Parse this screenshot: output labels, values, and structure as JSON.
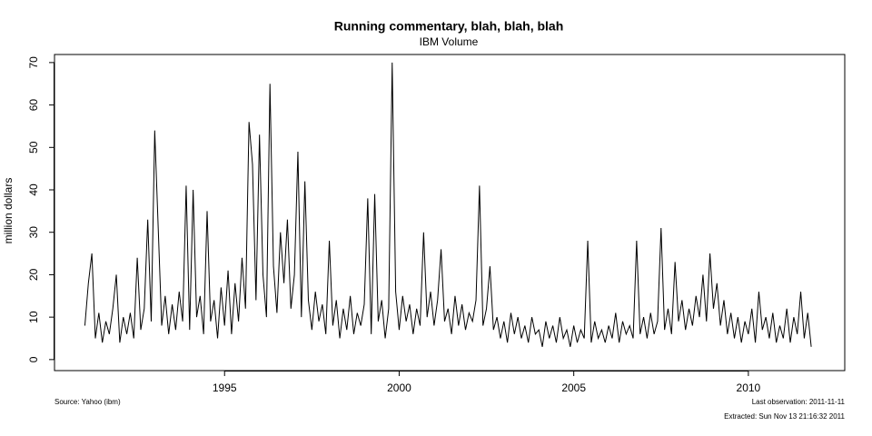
{
  "chart_data": {
    "type": "line",
    "title": "Running commentary, blah, blah, blah",
    "subtitle": "IBM Volume",
    "y_label": "million dollars",
    "source": "Source: Yahoo (ibm)",
    "last_observation": "Last observation: 2011-11-11",
    "extracted": "Extracted: Sun Nov 13 21:16:32 2011",
    "xlim": [
      1990.13,
      2012.76
    ],
    "ylim": [
      -2.6,
      71.9
    ],
    "xticks": [
      1995,
      2000,
      2005,
      2010
    ],
    "yticks": [
      0,
      10,
      20,
      30,
      40,
      50,
      60,
      70
    ],
    "x": [
      1991.0,
      1991.1,
      1991.2,
      1991.3,
      1991.4,
      1991.5,
      1991.6,
      1991.7,
      1991.8,
      1991.9,
      1992.0,
      1992.1,
      1992.2,
      1992.3,
      1992.4,
      1992.5,
      1992.6,
      1992.7,
      1992.8,
      1992.9,
      1993.0,
      1993.1,
      1993.2,
      1993.3,
      1993.4,
      1993.5,
      1993.6,
      1993.7,
      1993.8,
      1993.9,
      1994.0,
      1994.1,
      1994.2,
      1994.3,
      1994.4,
      1994.5,
      1994.6,
      1994.7,
      1994.8,
      1994.9,
      1995.0,
      1995.1,
      1995.2,
      1995.3,
      1995.4,
      1995.5,
      1995.6,
      1995.7,
      1995.8,
      1995.9,
      1996.0,
      1996.1,
      1996.2,
      1996.3,
      1996.4,
      1996.5,
      1996.6,
      1996.7,
      1996.8,
      1996.9,
      1997.0,
      1997.1,
      1997.2,
      1997.3,
      1997.4,
      1997.5,
      1997.6,
      1997.7,
      1997.8,
      1997.9,
      1998.0,
      1998.1,
      1998.2,
      1998.3,
      1998.4,
      1998.5,
      1998.6,
      1998.7,
      1998.8,
      1998.9,
      1999.0,
      1999.1,
      1999.2,
      1999.3,
      1999.4,
      1999.5,
      1999.6,
      1999.7,
      1999.8,
      1999.9,
      2000.0,
      2000.1,
      2000.2,
      2000.3,
      2000.4,
      2000.5,
      2000.6,
      2000.7,
      2000.8,
      2000.9,
      2001.0,
      2001.1,
      2001.2,
      2001.3,
      2001.4,
      2001.5,
      2001.6,
      2001.7,
      2001.8,
      2001.9,
      2002.0,
      2002.1,
      2002.2,
      2002.3,
      2002.4,
      2002.5,
      2002.6,
      2002.7,
      2002.8,
      2002.9,
      2003.0,
      2003.1,
      2003.2,
      2003.3,
      2003.4,
      2003.5,
      2003.6,
      2003.7,
      2003.8,
      2003.9,
      2004.0,
      2004.1,
      2004.2,
      2004.3,
      2004.4,
      2004.5,
      2004.6,
      2004.7,
      2004.8,
      2004.9,
      2005.0,
      2005.1,
      2005.2,
      2005.3,
      2005.4,
      2005.5,
      2005.6,
      2005.7,
      2005.8,
      2005.9,
      2006.0,
      2006.1,
      2006.2,
      2006.3,
      2006.4,
      2006.5,
      2006.6,
      2006.7,
      2006.8,
      2006.9,
      2007.0,
      2007.1,
      2007.2,
      2007.3,
      2007.4,
      2007.5,
      2007.6,
      2007.7,
      2007.8,
      2007.9,
      2008.0,
      2008.1,
      2008.2,
      2008.3,
      2008.4,
      2008.5,
      2008.6,
      2008.7,
      2008.8,
      2008.9,
      2009.0,
      2009.1,
      2009.2,
      2009.3,
      2009.4,
      2009.5,
      2009.6,
      2009.7,
      2009.8,
      2009.9,
      2010.0,
      2010.1,
      2010.2,
      2010.3,
      2010.4,
      2010.5,
      2010.6,
      2010.7,
      2010.8,
      2010.9,
      2011.0,
      2011.1,
      2011.2,
      2011.3,
      2011.4,
      2011.5,
      2011.6,
      2011.7,
      2011.8
    ],
    "values": [
      8,
      18,
      25,
      5,
      11,
      4,
      9,
      6,
      12,
      20,
      4,
      10,
      6,
      11,
      5,
      24,
      7,
      12,
      33,
      9,
      54,
      31,
      8,
      15,
      6,
      13,
      7,
      16,
      9,
      41,
      7,
      40,
      10,
      15,
      6,
      35,
      9,
      14,
      5,
      17,
      8,
      21,
      6,
      18,
      9,
      24,
      12,
      56,
      46,
      14,
      53,
      20,
      10,
      65,
      22,
      11,
      30,
      18,
      33,
      12,
      20,
      49,
      10,
      42,
      14,
      7,
      16,
      9,
      13,
      6,
      28,
      8,
      14,
      5,
      12,
      7,
      15,
      6,
      11,
      8,
      13,
      38,
      6,
      39,
      9,
      14,
      5,
      12,
      70,
      16,
      7,
      15,
      9,
      13,
      6,
      12,
      8,
      30,
      10,
      16,
      8,
      14,
      26,
      9,
      12,
      6,
      15,
      8,
      13,
      7,
      11,
      9,
      14,
      41,
      8,
      12,
      22,
      7,
      10,
      5,
      9,
      4,
      11,
      6,
      10,
      5,
      8,
      4,
      10,
      6,
      7,
      3,
      9,
      5,
      8,
      4,
      10,
      5,
      7,
      3,
      8,
      4,
      7,
      5,
      28,
      4,
      9,
      5,
      7,
      4,
      8,
      5,
      11,
      4,
      9,
      6,
      8,
      5,
      28,
      6,
      10,
      5,
      11,
      6,
      9,
      31,
      7,
      12,
      6,
      23,
      9,
      14,
      7,
      12,
      8,
      15,
      10,
      20,
      9,
      25,
      12,
      18,
      8,
      14,
      6,
      11,
      5,
      10,
      4,
      9,
      6,
      12,
      4,
      16,
      7,
      10,
      5,
      11,
      4,
      8,
      5,
      12,
      4,
      10,
      6,
      16,
      5,
      11,
      3
    ],
    "color": "#000000"
  }
}
